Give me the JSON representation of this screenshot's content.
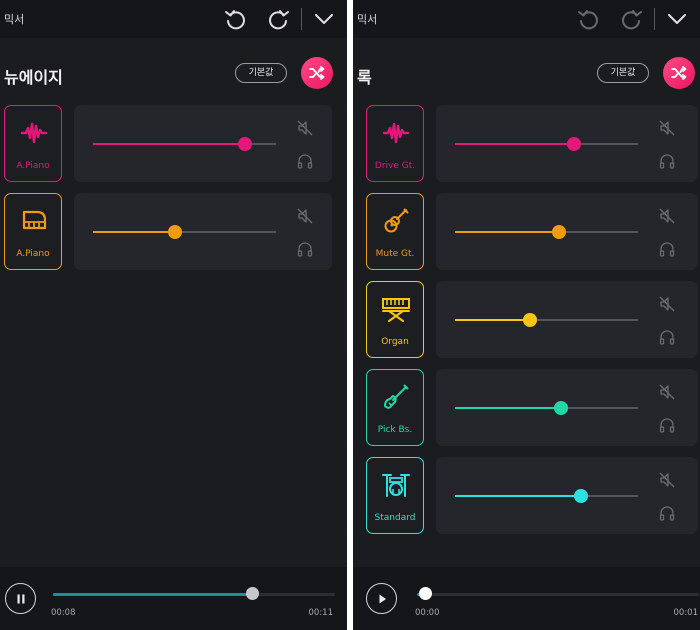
{
  "left": {
    "header": {
      "title": "믹서"
    },
    "genre": "뉴에이지",
    "reset_label": "기본값",
    "tracks": [
      {
        "label": "A.Piano",
        "icon": "waveform-icon",
        "color": "#e4187a",
        "level": 0.83
      },
      {
        "label": "A.Piano",
        "icon": "grand-piano-icon",
        "color": "#f19a12",
        "level": 0.45
      }
    ],
    "player": {
      "state": "playing",
      "current": "00:08",
      "total": "00:11",
      "progress": 0.705
    }
  },
  "right": {
    "header": {
      "title": "믹서"
    },
    "genre": "록",
    "reset_label": "기본값",
    "tracks": [
      {
        "label": "Drive Gt.",
        "icon": "waveform-icon",
        "color": "#e4187a",
        "level": 0.65
      },
      {
        "label": "Mute Gt.",
        "icon": "acoustic-guitar-icon",
        "color": "#f19a12",
        "level": 0.57
      },
      {
        "label": "Organ",
        "icon": "keyboard-stand-icon",
        "color": "#f7c614",
        "level": 0.41
      },
      {
        "label": "Pick Bs.",
        "icon": "electric-bass-icon",
        "color": "#1fd8a6",
        "level": 0.58
      },
      {
        "label": "Standard",
        "icon": "drum-kit-icon",
        "color": "#2ee0e0",
        "level": 0.69
      }
    ],
    "player": {
      "state": "stopped",
      "current": "00:00",
      "total": "00:01",
      "progress": 0.03
    }
  },
  "colors": {
    "background": "#1b1c20",
    "card": "#25262c",
    "bar": "#151619",
    "accent": "#f0306f",
    "progress": "#1f8fa8"
  }
}
